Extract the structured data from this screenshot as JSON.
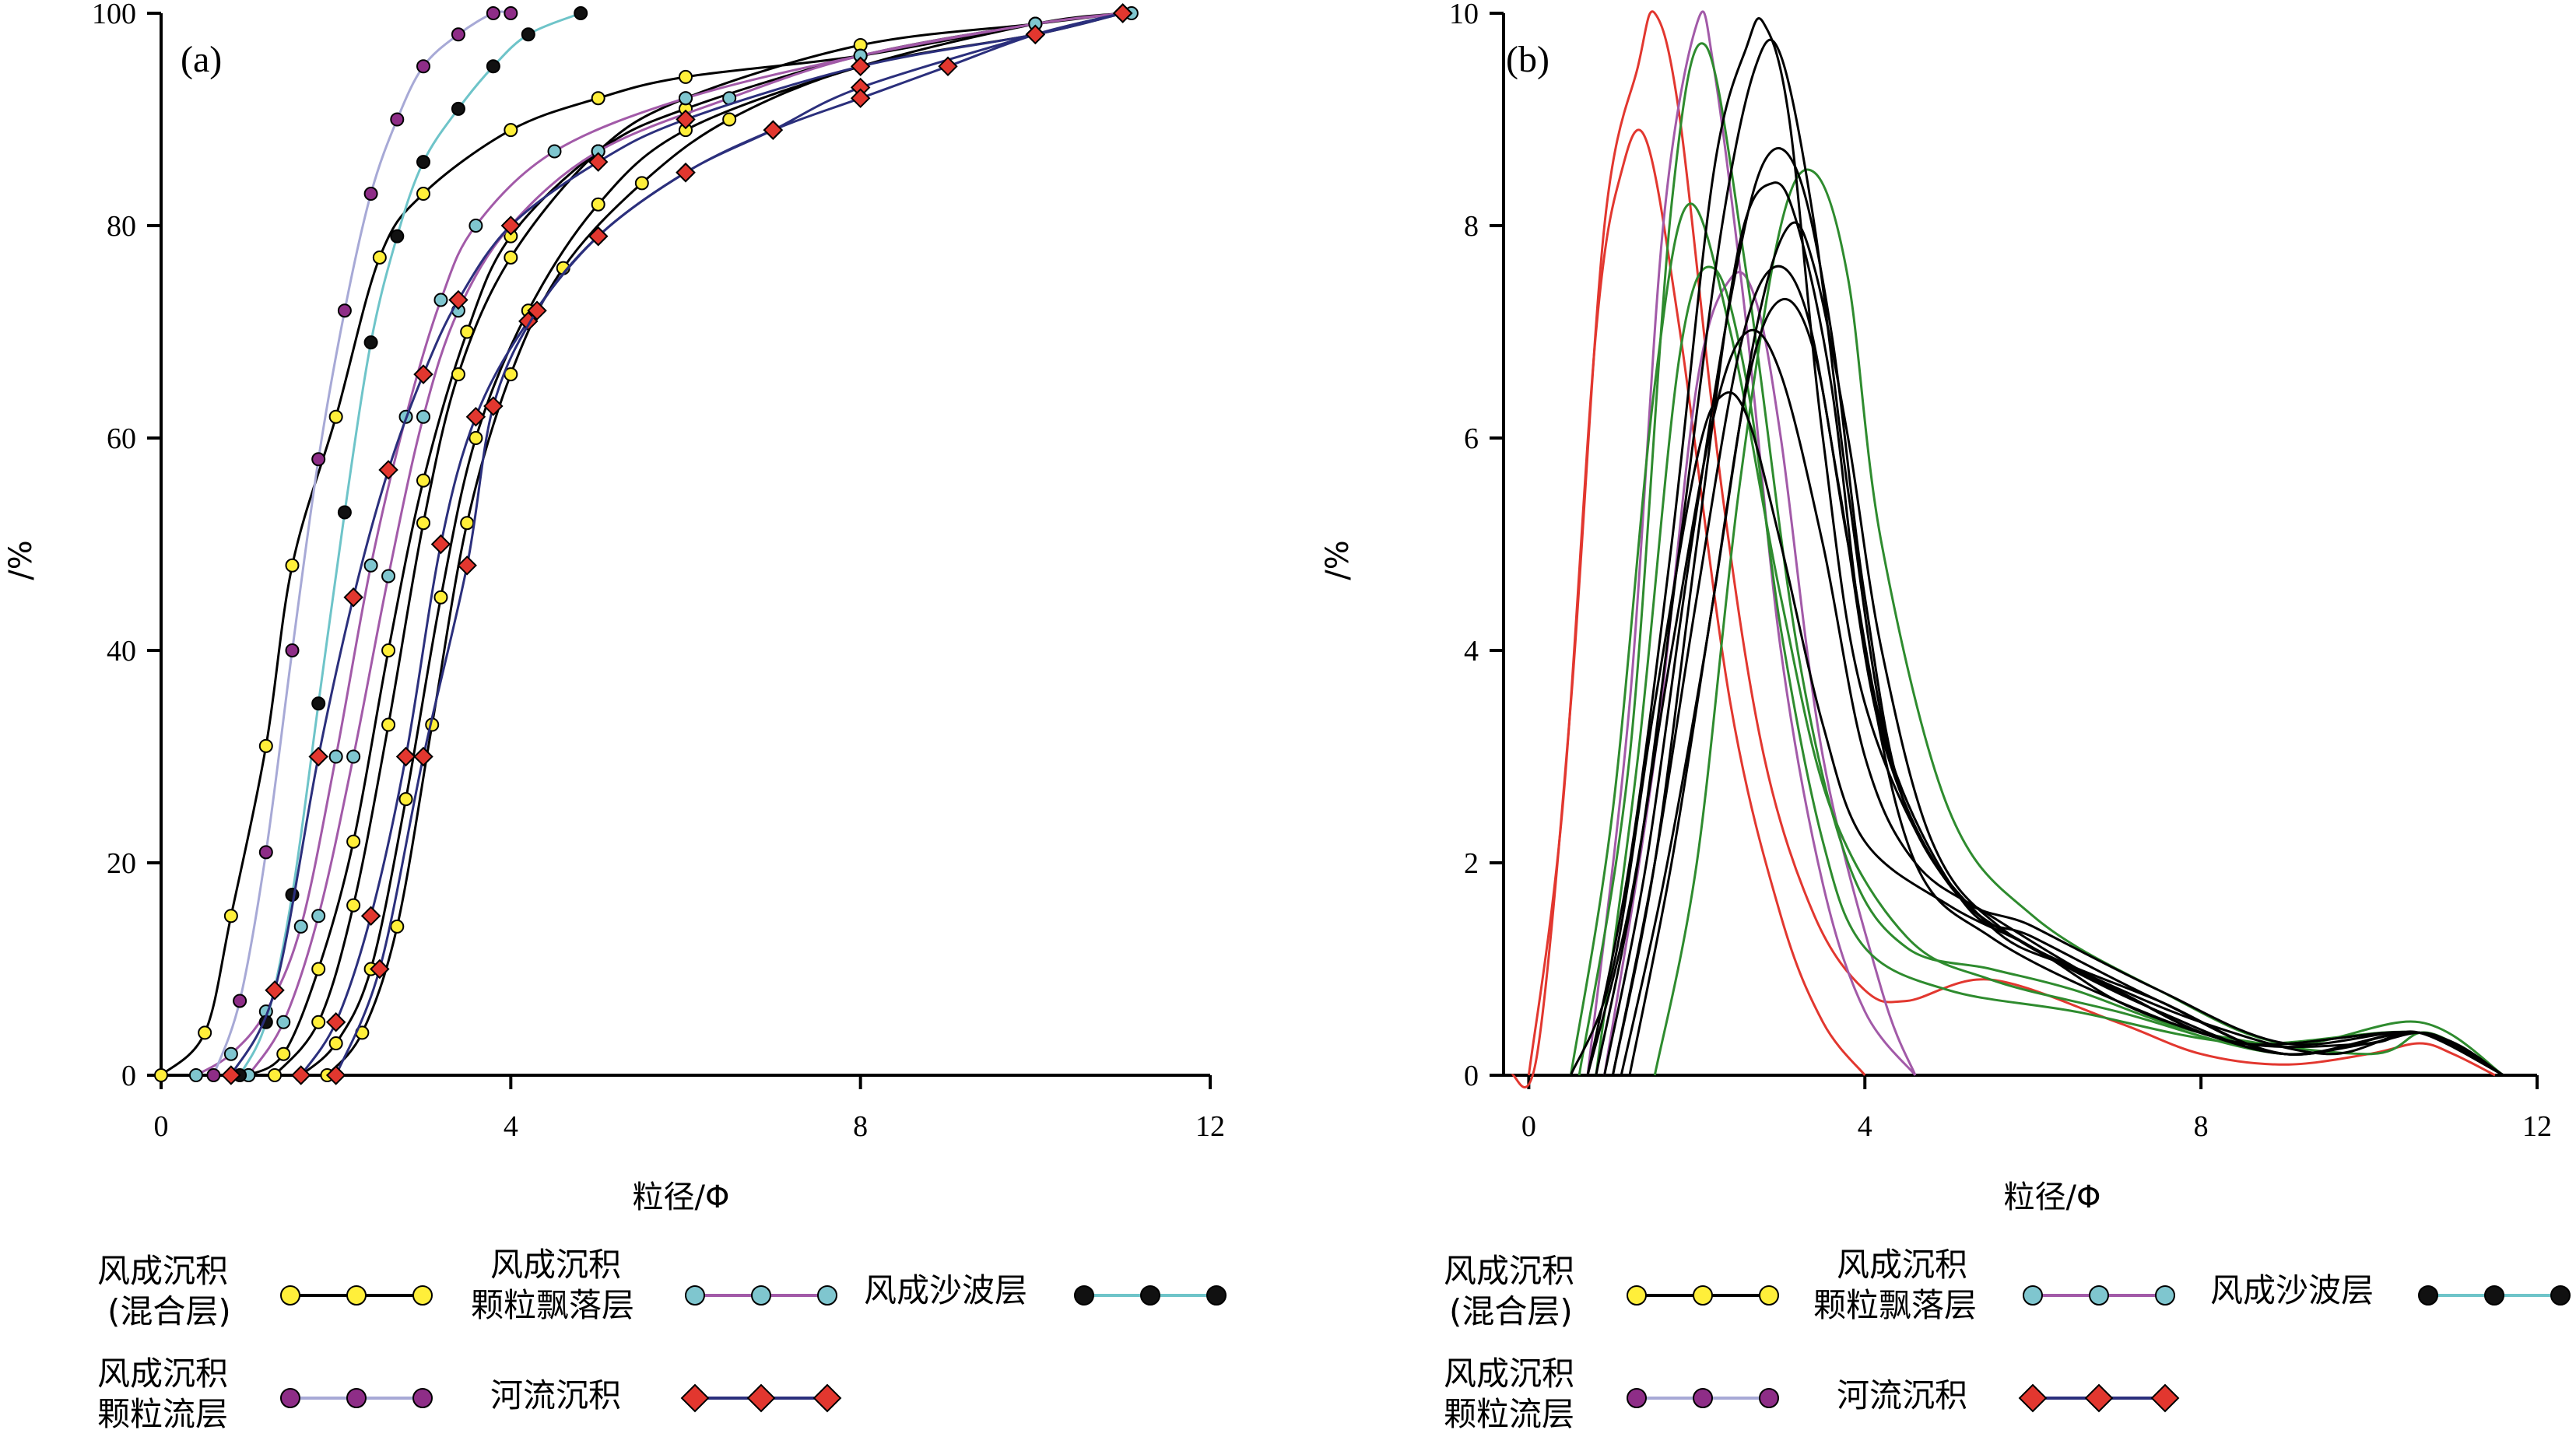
{
  "panels": [
    {
      "label": "(a)",
      "xlabel": "粒径/Φ",
      "ylabel": "/%"
    },
    {
      "label": "(b)",
      "xlabel": "粒径/Φ",
      "ylabel": "/%"
    }
  ],
  "legend": [
    {
      "line1": "风成沉积",
      "line2": "(混合层)",
      "marker": "#ffef3a",
      "line": "#000000"
    },
    {
      "line1": "风成沉积",
      "line2": "颗粒飘落层",
      "marker": "#7fc6cf",
      "line": "#a25aa8"
    },
    {
      "line1": "风成沙波层",
      "line2": "",
      "marker": "#111111",
      "line": "#6ec4c9"
    },
    {
      "line1": "风成沉积",
      "line2": "颗粒流层",
      "marker": "#8e2d87",
      "line": "#a7a9d6"
    },
    {
      "line1": "河流沉积",
      "line2": "",
      "marker": "#e2372f",
      "line": "#2b2f7c"
    }
  ],
  "chart_data": [
    {
      "type": "line",
      "title": "(a)",
      "xlabel": "粒径/Φ",
      "ylabel": "/%",
      "xlim": [
        0,
        12
      ],
      "ylim": [
        0,
        100
      ],
      "xticks": [
        0,
        4,
        8,
        12
      ],
      "yticks": [
        0,
        20,
        40,
        60,
        80,
        100
      ],
      "description": "cumulative grain-size curves",
      "series": [
        {
          "group": "风成沉积(混合层)",
          "color": "#000000",
          "marker": "#ffef3a",
          "x": [
            0,
            0.5,
            0.8,
            1.2,
            1.5,
            2.0,
            2.5,
            3.0,
            4.0,
            5.0,
            6.0,
            8.0,
            10.0,
            11.0
          ],
          "y": [
            0,
            4,
            15,
            31,
            48,
            62,
            77,
            83,
            89,
            92,
            94,
            96,
            99,
            100
          ]
        },
        {
          "group": "风成沉积(混合层)",
          "color": "#000000",
          "marker": "#ffef3a",
          "x": [
            1.0,
            1.4,
            1.8,
            2.2,
            2.6,
            3.0,
            3.5,
            4.0,
            5.0,
            6.0,
            8.0,
            10.0,
            11.0
          ],
          "y": [
            0,
            2,
            10,
            22,
            40,
            56,
            70,
            79,
            87,
            91,
            96,
            99,
            100
          ]
        },
        {
          "group": "风成沉积(混合层)",
          "color": "#000000",
          "marker": "#ffef3a",
          "x": [
            1.3,
            1.8,
            2.2,
            2.6,
            3.0,
            3.4,
            4.0,
            5.0,
            6.0,
            8.0,
            10.0,
            11.0
          ],
          "y": [
            0,
            5,
            16,
            33,
            52,
            66,
            77,
            87,
            92,
            97,
            99,
            100
          ]
        },
        {
          "group": "风成沉积(混合层)",
          "color": "#000000",
          "marker": "#ffef3a",
          "x": [
            1.6,
            2.0,
            2.4,
            2.8,
            3.2,
            3.6,
            4.2,
            5.0,
            6.0,
            8.0,
            10.0,
            11.0
          ],
          "y": [
            0,
            3,
            10,
            26,
            45,
            60,
            72,
            82,
            89,
            95,
            99,
            100
          ]
        },
        {
          "group": "风成沉积(混合层)",
          "color": "#000000",
          "marker": "#ffef3a",
          "x": [
            1.9,
            2.3,
            2.7,
            3.1,
            3.5,
            4.0,
            4.6,
            5.5,
            6.5,
            8.0,
            10.0,
            11.0
          ],
          "y": [
            0,
            4,
            14,
            33,
            52,
            66,
            76,
            84,
            90,
            95,
            98,
            100
          ]
        },
        {
          "group": "风成沉积颗粒飘落层",
          "color": "#a25aa8",
          "marker": "#7fc6cf",
          "x": [
            0.4,
            0.8,
            1.2,
            1.6,
            2.0,
            2.4,
            2.8,
            3.2,
            3.6,
            4.5,
            6.0,
            8.0,
            10.0,
            11.0
          ],
          "y": [
            0,
            2,
            6,
            14,
            30,
            48,
            62,
            73,
            80,
            87,
            92,
            96,
            99,
            100
          ]
        },
        {
          "group": "风成沉积颗粒飘落层",
          "color": "#a25aa8",
          "marker": "#7fc6cf",
          "x": [
            1.0,
            1.4,
            1.8,
            2.2,
            2.6,
            3.0,
            3.4,
            4.0,
            5.0,
            6.5,
            8.0,
            10.0,
            11.1
          ],
          "y": [
            0,
            5,
            15,
            30,
            47,
            62,
            72,
            80,
            87,
            92,
            96,
            99,
            100
          ]
        },
        {
          "group": "风成沙波层",
          "color": "#6ec4c9",
          "marker": "#111111",
          "x": [
            0.9,
            1.2,
            1.5,
            1.8,
            2.1,
            2.4,
            2.7,
            3.0,
            3.4,
            3.8,
            4.2,
            4.8
          ],
          "y": [
            0,
            5,
            17,
            35,
            53,
            69,
            79,
            86,
            91,
            95,
            98,
            100
          ]
        },
        {
          "group": "风成沉积颗粒流层",
          "color": "#a7a9d6",
          "marker": "#8e2d87",
          "x": [
            0.6,
            0.9,
            1.2,
            1.5,
            1.8,
            2.1,
            2.4,
            2.7,
            3.0,
            3.4,
            3.8,
            4.0
          ],
          "y": [
            0,
            7,
            21,
            40,
            58,
            72,
            83,
            90,
            95,
            98,
            100,
            100
          ]
        },
        {
          "group": "河流沉积",
          "color": "#2b2f7c",
          "marker": "#e2372f",
          "x": [
            0.8,
            1.3,
            1.8,
            2.2,
            2.6,
            3.0,
            3.4,
            4.0,
            5.0,
            6.0,
            8.0,
            10.0,
            11.0
          ],
          "y": [
            0,
            8,
            30,
            45,
            57,
            66,
            73,
            80,
            86,
            90,
            95,
            98,
            100
          ]
        },
        {
          "group": "河流沉积",
          "color": "#2b2f7c",
          "marker": "#e2372f",
          "x": [
            1.6,
            2.0,
            2.4,
            2.8,
            3.2,
            3.6,
            4.2,
            5.0,
            6.0,
            7.0,
            8.0,
            10.0,
            11.0
          ],
          "y": [
            0,
            5,
            15,
            30,
            50,
            62,
            71,
            79,
            85,
            89,
            93,
            98,
            100
          ]
        },
        {
          "group": "河流沉积",
          "color": "#2b2f7c",
          "marker": "#e2372f",
          "x": [
            2.0,
            2.5,
            3.0,
            3.5,
            3.8,
            4.3,
            5.0,
            6.0,
            7.0,
            8.0,
            9.0,
            10.0,
            11.0
          ],
          "y": [
            0,
            10,
            30,
            48,
            63,
            72,
            79,
            85,
            89,
            92,
            95,
            98,
            100
          ]
        }
      ]
    },
    {
      "type": "line",
      "title": "(b)",
      "xlabel": "粒径/Φ",
      "ylabel": "/%",
      "xlim": [
        -0.3,
        12
      ],
      "ylim": [
        0,
        10
      ],
      "xticks": [
        0,
        4,
        8,
        12
      ],
      "yticks": [
        0,
        2,
        4,
        6,
        8,
        10
      ],
      "description": "grain-size frequency curves",
      "series": [
        {
          "color": "#e2372f",
          "x": [
            -0.2,
            0.1,
            0.5,
            0.9,
            1.3,
            1.5,
            1.8,
            2.3,
            2.8,
            3.4,
            4.0,
            4.5,
            5.5,
            7.0,
            8.0,
            9.0,
            10.0,
            10.6,
            11.0,
            11.5
          ],
          "y": [
            0,
            0.2,
            3.5,
            8.0,
            9.5,
            10.0,
            9.0,
            5.5,
            3.0,
            1.5,
            0.8,
            0.7,
            0.9,
            0.5,
            0.2,
            0.1,
            0.2,
            0.3,
            0.2,
            0
          ]
        },
        {
          "color": "#e2372f",
          "x": [
            0.0,
            0.4,
            0.8,
            1.1,
            1.4,
            1.8,
            2.4,
            3.0,
            3.5,
            4.0
          ],
          "y": [
            0,
            2.5,
            7.0,
            8.5,
            8.8,
            7.0,
            3.5,
            1.5,
            0.5,
            0
          ]
        },
        {
          "color": "#a25aa8",
          "x": [
            0.7,
            1.2,
            1.6,
            2.0,
            2.2,
            2.6,
            3.0,
            3.5,
            4.0,
            4.6
          ],
          "y": [
            0,
            3.5,
            8.0,
            9.9,
            9.5,
            7.0,
            4.0,
            1.8,
            0.6,
            0
          ]
        },
        {
          "color": "#a25aa8",
          "x": [
            0.9,
            1.5,
            2.0,
            2.4,
            2.7,
            3.0,
            3.5,
            4.2,
            4.6
          ],
          "y": [
            0,
            3.0,
            6.5,
            7.5,
            7.3,
            6.0,
            3.0,
            0.8,
            0
          ]
        },
        {
          "color": "#2e8b2e",
          "x": [
            0.6,
            1.2,
            1.7,
            2.1,
            2.6,
            3.2,
            3.8,
            4.5,
            5.5,
            6.5,
            8.0,
            10.0,
            10.7,
            11.6
          ],
          "y": [
            0,
            3.0,
            8.2,
            9.7,
            7.5,
            4.0,
            2.0,
            1.2,
            1.0,
            0.8,
            0.4,
            0.2,
            0.4,
            0
          ]
        },
        {
          "color": "#2e8b2e",
          "x": [
            0.5,
            1.0,
            1.5,
            1.9,
            2.4,
            3.0,
            3.6,
            4.5,
            5.5,
            7.0,
            9.0,
            10.6,
            11.6
          ],
          "y": [
            0,
            2.5,
            6.5,
            8.2,
            7.0,
            4.5,
            2.5,
            1.3,
            0.9,
            0.6,
            0.2,
            0.4,
            0
          ]
        },
        {
          "color": "#2e8b2e",
          "x": [
            1.5,
            2.0,
            2.5,
            3.0,
            3.4,
            3.8,
            4.2,
            5.0,
            6.0,
            7.5,
            9.0,
            10.6,
            11.6
          ],
          "y": [
            0,
            2.0,
            5.5,
            8.0,
            8.5,
            7.5,
            5.0,
            2.5,
            1.5,
            0.8,
            0.3,
            0.5,
            0
          ]
        },
        {
          "color": "#2e8b2e",
          "x": [
            0.8,
            1.3,
            1.8,
            2.2,
            2.6,
            3.0,
            3.5,
            4.0,
            5.0,
            6.5,
            8.5,
            10.6,
            11.6
          ],
          "y": [
            0,
            3.0,
            6.8,
            7.6,
            6.5,
            4.2,
            2.2,
            1.2,
            0.8,
            0.6,
            0.3,
            0.4,
            0
          ]
        },
        {
          "color": "#000000",
          "x": [
            0.5,
            1.0,
            1.5,
            2.0,
            2.3,
            2.6,
            3.0,
            3.5,
            4.0,
            5.0,
            6.0,
            7.0,
            8.0,
            9.0,
            10.0,
            10.6,
            11.0,
            11.6
          ],
          "y": [
            0,
            1.0,
            3.5,
            5.8,
            6.4,
            6.2,
            5.0,
            3.3,
            2.2,
            1.6,
            1.2,
            0.7,
            0.4,
            0.2,
            0.3,
            0.4,
            0.3,
            0
          ]
        },
        {
          "color": "#000000",
          "x": [
            0.7,
            1.2,
            1.7,
            2.2,
            2.6,
            2.8,
            3.1,
            3.5,
            4.0,
            5.0,
            6.0,
            7.5,
            9.0,
            10.6,
            11.6
          ],
          "y": [
            0,
            2.0,
            5.0,
            8.5,
            9.7,
            9.9,
            9.0,
            6.0,
            3.5,
            1.8,
            1.4,
            0.8,
            0.3,
            0.4,
            0
          ]
        },
        {
          "color": "#000000",
          "x": [
            0.8,
            1.3,
            1.8,
            2.3,
            2.7,
            3.0,
            3.4,
            3.8,
            4.3,
            5.0,
            6.0,
            7.5,
            9.0,
            10.6,
            11.6
          ],
          "y": [
            0,
            2.0,
            5.0,
            8.0,
            9.5,
            9.6,
            8.0,
            5.5,
            3.0,
            1.8,
            1.2,
            0.7,
            0.2,
            0.4,
            0
          ]
        },
        {
          "color": "#000000",
          "x": [
            0.9,
            1.4,
            1.9,
            2.4,
            2.8,
            3.2,
            3.6,
            4.0,
            4.5,
            5.5,
            6.5,
            8.0,
            9.5,
            10.6,
            11.6
          ],
          "y": [
            0,
            2.0,
            4.8,
            7.3,
            8.6,
            8.5,
            7.0,
            4.5,
            2.5,
            1.4,
            1.0,
            0.5,
            0.2,
            0.4,
            0
          ]
        },
        {
          "color": "#000000",
          "x": [
            1.0,
            1.5,
            2.0,
            2.5,
            2.9,
            3.3,
            3.7,
            4.2,
            5.0,
            6.0,
            7.5,
            9.0,
            10.6,
            11.6
          ],
          "y": [
            0,
            2.0,
            4.5,
            6.8,
            7.6,
            7.2,
            5.5,
            3.2,
            1.8,
            1.2,
            0.6,
            0.2,
            0.4,
            0
          ]
        },
        {
          "color": "#000000",
          "x": [
            1.1,
            1.6,
            2.1,
            2.6,
            3.0,
            3.4,
            3.8,
            4.3,
            5.2,
            6.0,
            7.5,
            9.0,
            10.6,
            11.6
          ],
          "y": [
            0,
            1.8,
            4.0,
            6.5,
            7.3,
            6.8,
            5.0,
            3.0,
            1.6,
            1.3,
            0.7,
            0.2,
            0.4,
            0
          ]
        },
        {
          "color": "#000000",
          "x": [
            1.0,
            1.5,
            2.0,
            2.5,
            2.9,
            3.2,
            3.6,
            4.0,
            4.6,
            5.5,
            7.0,
            8.5,
            10.0,
            10.6,
            11.6
          ],
          "y": [
            0,
            2.0,
            5.0,
            7.8,
            8.4,
            8.0,
            6.5,
            4.0,
            2.0,
            1.3,
            0.7,
            0.3,
            0.3,
            0.4,
            0
          ]
        },
        {
          "color": "#000000",
          "x": [
            1.2,
            1.7,
            2.2,
            2.7,
            3.1,
            3.4,
            3.8,
            4.2,
            4.8,
            5.6,
            7.0,
            8.5,
            10.6,
            11.6
          ],
          "y": [
            0,
            2.0,
            4.5,
            7.0,
            8.0,
            7.6,
            6.0,
            4.0,
            2.2,
            1.4,
            0.8,
            0.3,
            0.4,
            0
          ]
        },
        {
          "color": "#000000",
          "x": [
            0.7,
            1.2,
            1.7,
            2.2,
            2.6,
            3.0,
            3.5,
            4.0,
            4.6,
            5.5,
            7.0,
            8.5,
            10.6,
            11.6
          ],
          "y": [
            0,
            1.6,
            4.0,
            6.2,
            7.0,
            6.6,
            5.0,
            3.0,
            2.0,
            1.5,
            0.8,
            0.3,
            0.4,
            0
          ]
        }
      ]
    }
  ]
}
